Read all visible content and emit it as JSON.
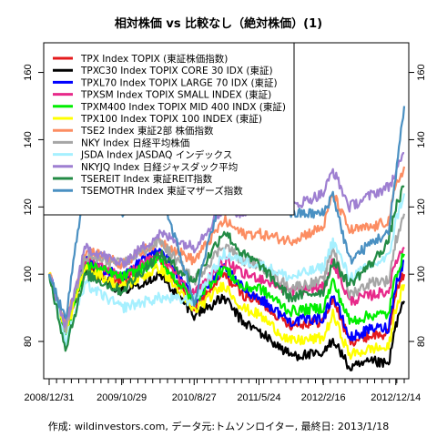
{
  "chart_data": {
    "type": "line",
    "title": "相対株価 vs 比較なし（絶対株価）(1)",
    "footer": "作成: wildinvestors.com, データ元:トムソンロイター, 最終日: 2013/1/18",
    "x_tick_labels": [
      "2008/12/31",
      "2009/10/29",
      "2010/8/27",
      "2011/5/24",
      "2012/2/16",
      "2012/12/14"
    ],
    "y_ticks": [
      80,
      100,
      120,
      140,
      160
    ],
    "ylim": [
      70,
      168
    ],
    "grid": false,
    "legend_position": "top-left",
    "x_points": [
      "2008/12/31",
      "2009/3/9",
      "2009/6/1",
      "2009/10/29",
      "2010/4/5",
      "2010/8/27",
      "2010/12/30",
      "2011/3/15",
      "2011/5/24",
      "2011/9/30",
      "2012/2/16",
      "2012/3/27",
      "2012/6/4",
      "2012/9/14",
      "2012/11/14",
      "2012/12/14",
      "2013/1/18"
    ],
    "series": [
      {
        "name": "TPX Index TOPIX (東証株価指数)",
        "color": "#e41a1c",
        "values": [
          100,
          83,
          103,
          98,
          105,
          90,
          100,
          94,
          92,
          85,
          86,
          93,
          80,
          82,
          82,
          95,
          100
        ]
      },
      {
        "name": "TPXC30 Index TOPIX CORE 30 IDX (東証)",
        "color": "#000000",
        "values": [
          100,
          84,
          102,
          95,
          100,
          88,
          93,
          86,
          83,
          76,
          76,
          81,
          72,
          74,
          73,
          85,
          92
        ]
      },
      {
        "name": "TPXL70 Index TOPIX LARGE 70 IDX (東証)",
        "color": "#0000ff",
        "values": [
          100,
          84,
          104,
          99,
          108,
          92,
          102,
          96,
          93,
          86,
          87,
          94,
          81,
          84,
          84,
          97,
          104
        ]
      },
      {
        "name": "TPXSM Index TOPIX SMALL INDEX (東証)",
        "color": "#e7298a",
        "values": [
          100,
          83,
          104,
          99,
          106,
          94,
          104,
          100,
          99,
          95,
          96,
          104,
          92,
          94,
          95,
          104,
          108
        ]
      },
      {
        "name": "TPXM400 Index TOPIX MID 400 INDX (東証)",
        "color": "#00ee00",
        "values": [
          100,
          82,
          103,
          99,
          104,
          92,
          102,
          96,
          96,
          89,
          90,
          98,
          86,
          88,
          88,
          100,
          106
        ]
      },
      {
        "name": "TPX100 Index TOPIX 100 INDEX (東証)",
        "color": "#ffff00",
        "values": [
          100,
          83,
          102,
          96,
          102,
          89,
          97,
          90,
          88,
          80,
          81,
          88,
          76,
          78,
          78,
          90,
          97
        ]
      },
      {
        "name": "TSE2 Index 東証2部 株価指数",
        "color": "#fc8d62",
        "values": [
          100,
          85,
          107,
          103,
          110,
          104,
          116,
          112,
          112,
          110,
          114,
          124,
          113,
          114,
          116,
          126,
          132
        ]
      },
      {
        "name": "NKY Index 日経平均株価",
        "color": "#a6a6a6",
        "values": [
          100,
          84,
          105,
          103,
          110,
          98,
          109,
          104,
          103,
          96,
          98,
          108,
          94,
          98,
          98,
          110,
          118
        ]
      },
      {
        "name": "JSDA Index JASDAQ インデックス",
        "color": "#a6f0ff",
        "values": [
          100,
          80,
          97,
          90,
          93,
          92,
          106,
          104,
          103,
          99,
          102,
          110,
          99,
          103,
          105,
          116,
          124
        ]
      },
      {
        "name": "NKYJQ Index 日経ジャスダック平均",
        "color": "#9e7fd1",
        "values": [
          100,
          84,
          108,
          103,
          112,
          108,
          120,
          118,
          122,
          120,
          124,
          131,
          120,
          124,
          126,
          130,
          136
        ]
      },
      {
        "name": "TSEREIT Index 東証REIT指数",
        "color": "#238b45",
        "values": [
          100,
          78,
          100,
          95,
          106,
          98,
          113,
          106,
          103,
          93,
          95,
          104,
          97,
          104,
          110,
          120,
          126
        ]
      },
      {
        "name": "TSEMOTHR Index 東証マザーズ指数",
        "color": "#4a90c2",
        "values": [
          100,
          86,
          130,
          118,
          126,
          92,
          128,
          124,
          158,
          118,
          118,
          124,
          104,
          110,
          112,
          130,
          150
        ]
      }
    ]
  }
}
